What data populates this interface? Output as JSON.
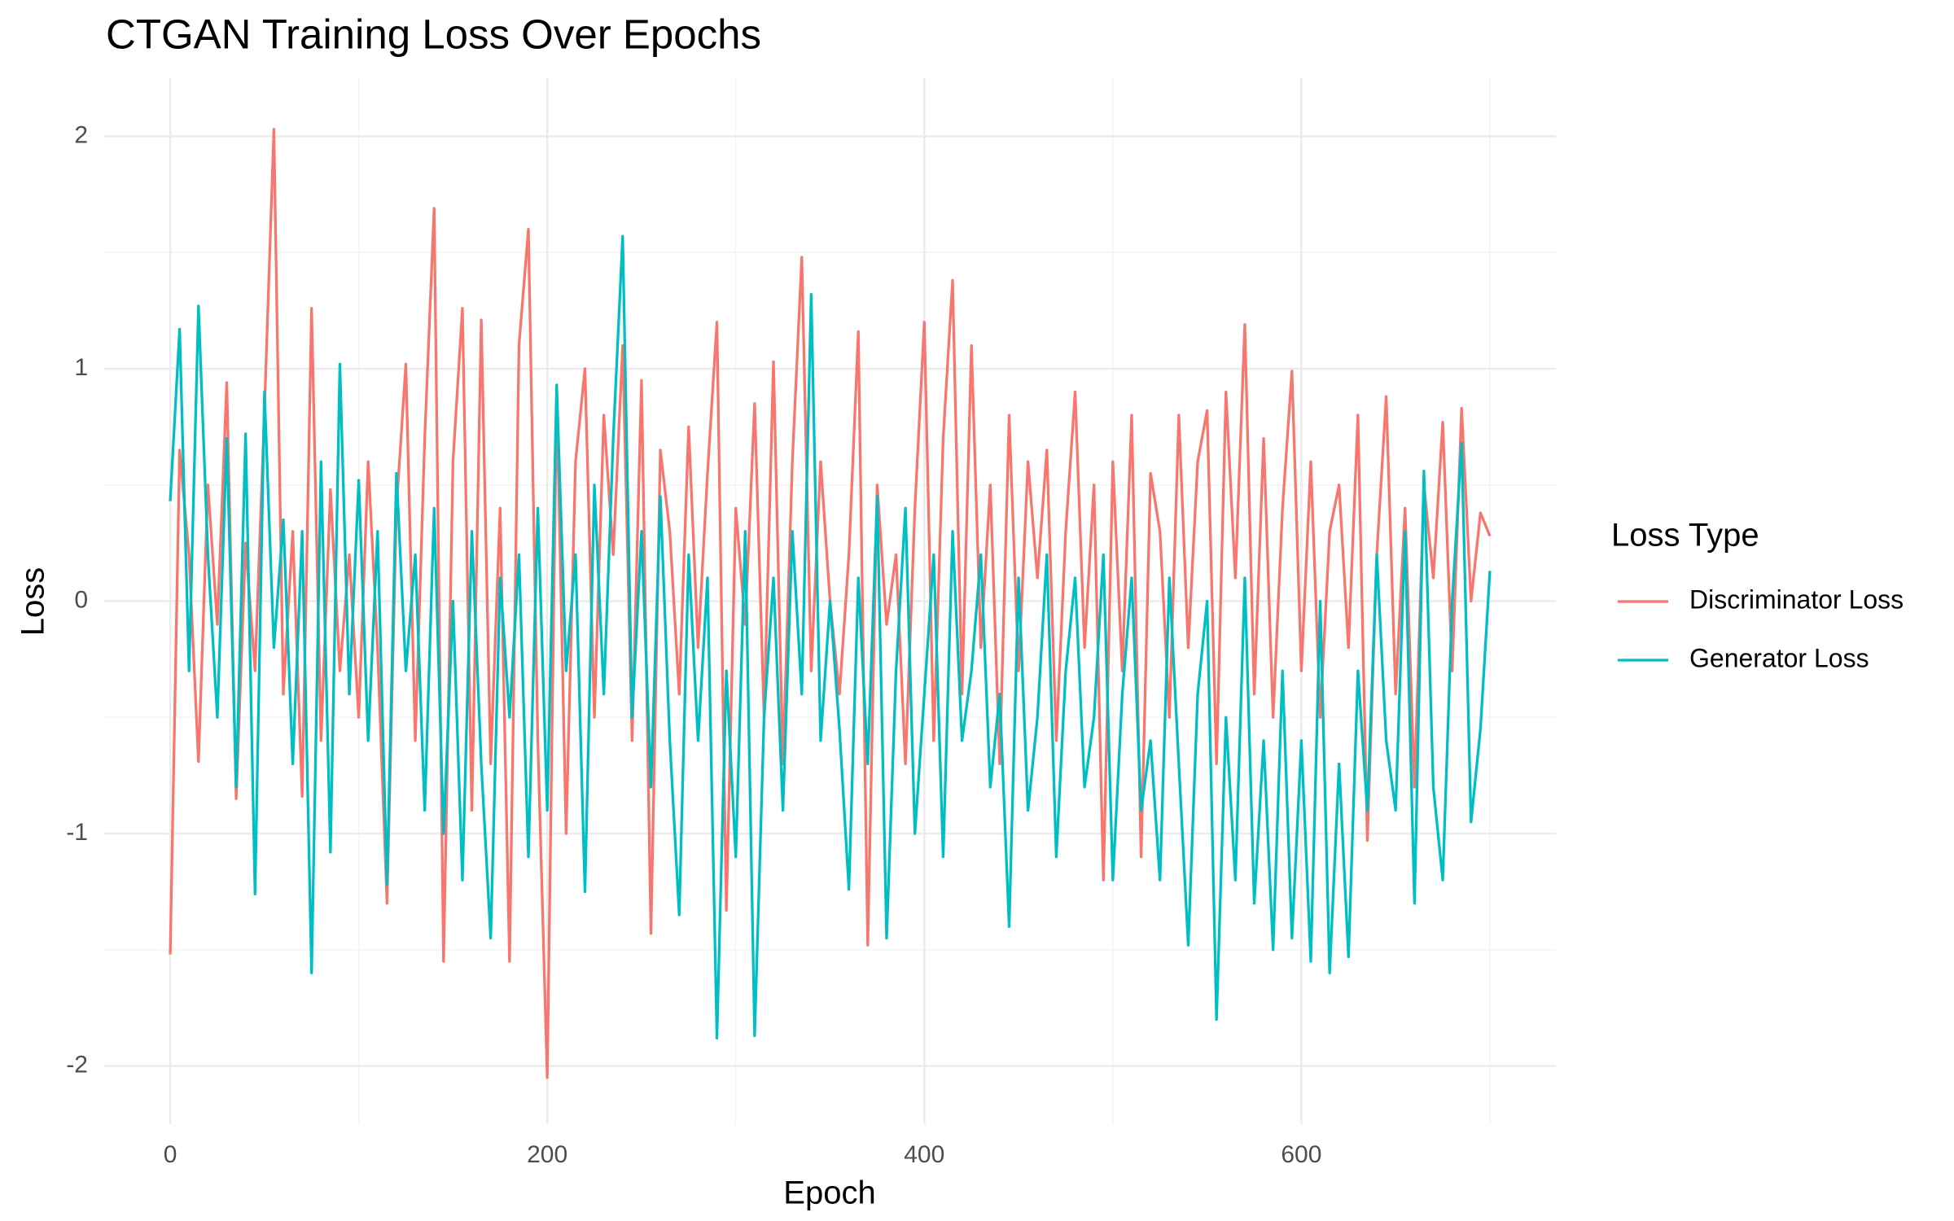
{
  "chart_data": {
    "type": "line",
    "title": "CTGAN Training Loss Over Epochs",
    "x_label": "Epoch",
    "y_label": "Loss",
    "legend_title": "Loss Type",
    "legend_position": "right",
    "grid": true,
    "xlim": [
      -35,
      735
    ],
    "ylim": [
      -2.25,
      2.25
    ],
    "xticks": [
      0,
      200,
      400,
      600
    ],
    "yticks": [
      -2,
      -1,
      0,
      1,
      2
    ],
    "xminor_ticks": [
      100,
      300,
      500,
      700
    ],
    "yminor_ticks": [
      -1.5,
      -0.5,
      0.5,
      1.5
    ],
    "x": [
      0,
      5,
      10,
      15,
      20,
      25,
      30,
      35,
      40,
      45,
      50,
      55,
      60,
      65,
      70,
      75,
      80,
      85,
      90,
      95,
      100,
      105,
      110,
      115,
      120,
      125,
      130,
      135,
      140,
      145,
      150,
      155,
      160,
      165,
      170,
      175,
      180,
      185,
      190,
      195,
      200,
      205,
      210,
      215,
      220,
      225,
      230,
      235,
      240,
      245,
      250,
      255,
      260,
      265,
      270,
      275,
      280,
      285,
      290,
      295,
      300,
      305,
      310,
      315,
      320,
      325,
      330,
      335,
      340,
      345,
      350,
      355,
      360,
      365,
      370,
      375,
      380,
      385,
      390,
      395,
      400,
      405,
      410,
      415,
      420,
      425,
      430,
      435,
      440,
      445,
      450,
      455,
      460,
      465,
      470,
      475,
      480,
      485,
      490,
      495,
      500,
      505,
      510,
      515,
      520,
      525,
      530,
      535,
      540,
      545,
      550,
      555,
      560,
      565,
      570,
      575,
      580,
      585,
      590,
      595,
      600,
      605,
      610,
      615,
      620,
      625,
      630,
      635,
      640,
      645,
      650,
      655,
      660,
      665,
      670,
      675,
      680,
      685,
      690,
      695,
      700
    ],
    "series": [
      {
        "name": "Discriminator Loss",
        "color": "#F8766D",
        "values": [
          -1.52,
          0.65,
          0.2,
          -0.69,
          0.5,
          -0.1,
          0.94,
          -0.85,
          0.25,
          -0.3,
          0.82,
          2.03,
          -0.4,
          0.3,
          -0.84,
          1.26,
          -0.6,
          0.48,
          -0.3,
          0.2,
          -0.5,
          0.6,
          -0.2,
          -1.3,
          0.4,
          1.02,
          -0.6,
          0.7,
          1.69,
          -1.55,
          0.6,
          1.26,
          -0.9,
          1.21,
          -0.7,
          0.4,
          -1.55,
          1.1,
          1.6,
          -0.6,
          -2.05,
          0.9,
          -1.0,
          0.6,
          1.0,
          -0.5,
          0.8,
          0.2,
          1.1,
          -0.6,
          0.95,
          -1.43,
          0.65,
          0.3,
          -0.4,
          0.75,
          -0.2,
          0.55,
          1.2,
          -1.33,
          0.4,
          -0.1,
          0.85,
          -0.5,
          1.03,
          -0.7,
          0.6,
          1.48,
          -0.3,
          0.6,
          0.0,
          -0.4,
          0.2,
          1.16,
          -1.48,
          0.5,
          -0.1,
          0.2,
          -0.7,
          0.4,
          1.2,
          -0.6,
          0.7,
          1.38,
          -0.4,
          1.1,
          -0.2,
          0.5,
          -0.7,
          0.8,
          -0.3,
          0.6,
          0.1,
          0.65,
          -0.6,
          0.3,
          0.9,
          -0.2,
          0.5,
          -1.2,
          0.6,
          -0.3,
          0.8,
          -1.1,
          0.55,
          0.3,
          -0.5,
          0.8,
          -0.2,
          0.6,
          0.82,
          -0.7,
          0.9,
          0.1,
          1.19,
          -0.4,
          0.7,
          -0.5,
          0.4,
          0.99,
          -0.3,
          0.6,
          -0.5,
          0.3,
          0.5,
          -0.2,
          0.8,
          -1.03,
          0.2,
          0.88,
          -0.4,
          0.4,
          -0.8,
          0.5,
          0.1,
          0.77,
          -0.3,
          0.83,
          0.0,
          0.38,
          0.28
        ]
      },
      {
        "name": "Generator Loss",
        "color": "#00BFC4",
        "values": [
          0.43,
          1.17,
          -0.3,
          1.27,
          0.2,
          -0.5,
          0.7,
          -0.8,
          0.72,
          -1.26,
          0.9,
          -0.2,
          0.35,
          -0.7,
          0.3,
          -1.6,
          0.6,
          -1.08,
          1.02,
          -0.4,
          0.52,
          -0.6,
          0.3,
          -1.22,
          0.55,
          -0.3,
          0.2,
          -0.9,
          0.4,
          -1.0,
          0.0,
          -1.2,
          0.3,
          -0.7,
          -1.45,
          0.1,
          -0.5,
          0.2,
          -1.1,
          0.4,
          -0.9,
          0.93,
          -0.3,
          0.2,
          -1.25,
          0.5,
          -0.4,
          0.7,
          1.57,
          -0.5,
          0.3,
          -0.8,
          0.45,
          -0.6,
          -1.35,
          0.2,
          -0.6,
          0.1,
          -1.88,
          -0.3,
          -1.1,
          0.3,
          -1.87,
          -0.5,
          0.1,
          -0.9,
          0.3,
          -0.4,
          1.32,
          -0.6,
          0.0,
          -0.55,
          -1.24,
          0.1,
          -0.7,
          0.45,
          -1.45,
          -0.3,
          0.4,
          -1.0,
          -0.4,
          0.2,
          -1.1,
          0.3,
          -0.6,
          -0.3,
          0.2,
          -0.8,
          -0.4,
          -1.4,
          0.1,
          -0.9,
          -0.5,
          0.2,
          -1.1,
          -0.3,
          0.1,
          -0.8,
          -0.5,
          0.2,
          -1.2,
          -0.4,
          0.1,
          -0.9,
          -0.6,
          -1.2,
          0.1,
          -0.7,
          -1.48,
          -0.4,
          0.0,
          -1.8,
          -0.5,
          -1.2,
          0.1,
          -1.3,
          -0.6,
          -1.5,
          -0.3,
          -1.45,
          -0.6,
          -1.55,
          0.0,
          -1.6,
          -0.7,
          -1.53,
          -0.3,
          -0.9,
          0.2,
          -0.6,
          -0.9,
          0.3,
          -1.3,
          0.56,
          -0.8,
          -1.2,
          0.0,
          0.68,
          -0.95,
          -0.55,
          0.13
        ]
      }
    ]
  }
}
